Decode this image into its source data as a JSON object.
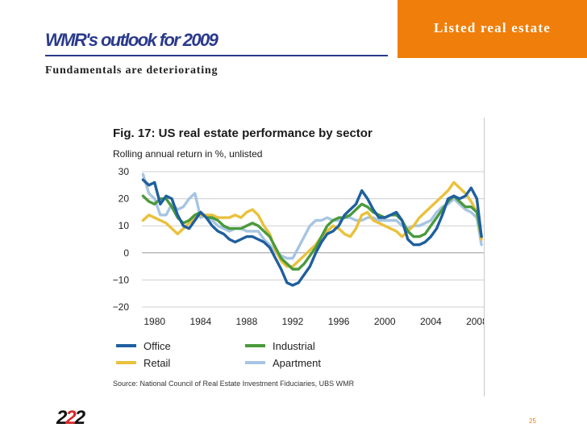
{
  "slide": {
    "tag": "Listed real estate",
    "title": "WMR's outlook for 2009",
    "subtitle": "Fundamentals are deteriorating",
    "logo_left": "2",
    "logo_mid": "2",
    "logo_right": "2",
    "page_number": "25",
    "colors": {
      "tag_bg": "#f07e0a",
      "title": "#2a3a8c",
      "logo_accent": "#d8282d"
    }
  },
  "chart_data": {
    "type": "line",
    "title": "Fig. 17: US real estate performance by sector",
    "subtitle": "Rolling annual return in %, unlisted",
    "source": "Source: National Council of Real Estate Investment Fiduciaries, UBS WMR",
    "xlim": [
      1978.9,
      2008.6
    ],
    "ylim": [
      -20,
      30
    ],
    "yticks": [
      30,
      20,
      10,
      0,
      -10,
      -20
    ],
    "ytick_labels": [
      "30",
      "20",
      "10",
      "0",
      "−10",
      "−20"
    ],
    "xticks": [
      1980,
      1984,
      1988,
      1992,
      1996,
      2000,
      2004,
      2008
    ],
    "xtick_labels": [
      "1980",
      "1984",
      "1988",
      "1992",
      "1996",
      "2000",
      "2004",
      "2008"
    ],
    "grid": true,
    "legend_position": "bottom",
    "series": [
      {
        "name": "Office",
        "color": "#1f5f9e",
        "x": [
          1979,
          1979.5,
          1980,
          1980.5,
          1981,
          1981.5,
          1982,
          1982.5,
          1983,
          1983.5,
          1984,
          1984.5,
          1985,
          1985.5,
          1986,
          1986.5,
          1987,
          1987.5,
          1988,
          1988.5,
          1989,
          1989.5,
          1990,
          1990.5,
          1991,
          1991.5,
          1992,
          1992.5,
          1993,
          1993.5,
          1994,
          1994.5,
          1995,
          1995.5,
          1996,
          1996.5,
          1997,
          1997.5,
          1998,
          1998.5,
          1999,
          1999.5,
          2000,
          2000.5,
          2001,
          2001.5,
          2002,
          2002.5,
          2003,
          2003.5,
          2004,
          2004.5,
          2005,
          2005.5,
          2006,
          2006.5,
          2007,
          2007.5,
          2008,
          2008.4
        ],
        "y": [
          27,
          25,
          26,
          18,
          21,
          20,
          14,
          10,
          9,
          12,
          15,
          13,
          10,
          8,
          7,
          5,
          4,
          5,
          6,
          6,
          5,
          4,
          2,
          -2,
          -6,
          -11,
          -12,
          -11,
          -8,
          -5,
          0,
          4,
          7,
          8,
          10,
          14,
          16,
          18,
          23,
          20,
          16,
          13,
          13,
          14,
          15,
          12,
          5,
          3,
          3,
          4,
          6,
          9,
          14,
          20,
          21,
          20,
          21,
          24,
          20,
          6
        ]
      },
      {
        "name": "Industrial",
        "color": "#4a9a3c",
        "x": [
          1979,
          1979.5,
          1980,
          1980.5,
          1981,
          1981.5,
          1982,
          1982.5,
          1983,
          1983.5,
          1984,
          1984.5,
          1985,
          1985.5,
          1986,
          1986.5,
          1987,
          1987.5,
          1988,
          1988.5,
          1989,
          1989.5,
          1990,
          1990.5,
          1991,
          1991.5,
          1992,
          1992.5,
          1993,
          1993.5,
          1994,
          1994.5,
          1995,
          1995.5,
          1996,
          1996.5,
          1997,
          1997.5,
          1998,
          1998.5,
          1999,
          1999.5,
          2000,
          2000.5,
          2001,
          2001.5,
          2002,
          2002.5,
          2003,
          2003.5,
          2004,
          2004.5,
          2005,
          2005.5,
          2006,
          2006.5,
          2007,
          2007.5,
          2008,
          2008.4
        ],
        "y": [
          21,
          19,
          18,
          20,
          20,
          17,
          13,
          11,
          12,
          14,
          15,
          13,
          13,
          12,
          10,
          9,
          9,
          9,
          10,
          11,
          10,
          8,
          6,
          2,
          -2,
          -4,
          -6,
          -6,
          -4,
          -1,
          2,
          6,
          10,
          12,
          13,
          13,
          14,
          16,
          18,
          17,
          15,
          14,
          13,
          14,
          14,
          12,
          8,
          6,
          6,
          7,
          10,
          13,
          16,
          19,
          21,
          19,
          17,
          17,
          15,
          6
        ]
      },
      {
        "name": "Retail",
        "color": "#e9c13c",
        "x": [
          1979,
          1979.5,
          1980,
          1980.5,
          1981,
          1981.5,
          1982,
          1982.5,
          1983,
          1983.5,
          1984,
          1984.5,
          1985,
          1985.5,
          1986,
          1986.5,
          1987,
          1987.5,
          1988,
          1988.5,
          1989,
          1989.5,
          1990,
          1990.5,
          1991,
          1991.5,
          1992,
          1992.5,
          1993,
          1993.5,
          1994,
          1994.5,
          1995,
          1995.5,
          1996,
          1996.5,
          1997,
          1997.5,
          1998,
          1998.5,
          1999,
          1999.5,
          2000,
          2000.5,
          2001,
          2001.5,
          2002,
          2002.5,
          2003,
          2003.5,
          2004,
          2004.5,
          2005,
          2005.5,
          2006,
          2006.5,
          2007,
          2007.5,
          2008,
          2008.4
        ],
        "y": [
          12,
          14,
          13,
          12,
          11,
          9,
          7,
          9,
          11,
          13,
          14,
          14,
          14,
          13,
          13,
          13,
          14,
          13,
          15,
          16,
          14,
          10,
          7,
          1,
          -3,
          -5,
          -5,
          -3,
          -1,
          1,
          3,
          6,
          8,
          10,
          9,
          7,
          6,
          9,
          14,
          15,
          12,
          11,
          10,
          9,
          8,
          6,
          8,
          10,
          13,
          15,
          17,
          19,
          21,
          23,
          26,
          24,
          22,
          19,
          15,
          5
        ]
      },
      {
        "name": "Apartment",
        "color": "#a6c5e2",
        "x": [
          1979,
          1979.5,
          1980,
          1980.5,
          1981,
          1981.5,
          1982,
          1982.5,
          1983,
          1983.5,
          1984,
          1984.5,
          1985,
          1985.5,
          1986,
          1986.5,
          1987,
          1987.5,
          1988,
          1988.5,
          1989,
          1989.5,
          1990,
          1990.5,
          1991,
          1991.5,
          1992,
          1992.5,
          1993,
          1993.5,
          1994,
          1994.5,
          1995,
          1995.5,
          1996,
          1996.5,
          1997,
          1997.5,
          1998,
          1998.5,
          1999,
          1999.5,
          2000,
          2000.5,
          2001,
          2001.5,
          2002,
          2002.5,
          2003,
          2003.5,
          2004,
          2004.5,
          2005,
          2005.5,
          2006,
          2006.5,
          2007,
          2007.5,
          2008,
          2008.4
        ],
        "y": [
          29,
          22,
          20,
          14,
          14,
          18,
          16,
          17,
          20,
          22,
          13,
          14,
          12,
          10,
          9,
          8,
          9,
          9,
          8,
          8,
          8,
          5,
          3,
          0,
          -1,
          -2,
          -2,
          2,
          6,
          10,
          12,
          12,
          13,
          12,
          12,
          13,
          13,
          12,
          12,
          13,
          13,
          12,
          12,
          12,
          12,
          10,
          9,
          10,
          10,
          11,
          12,
          15,
          17,
          18,
          20,
          18,
          16,
          15,
          13,
          3
        ]
      }
    ]
  }
}
